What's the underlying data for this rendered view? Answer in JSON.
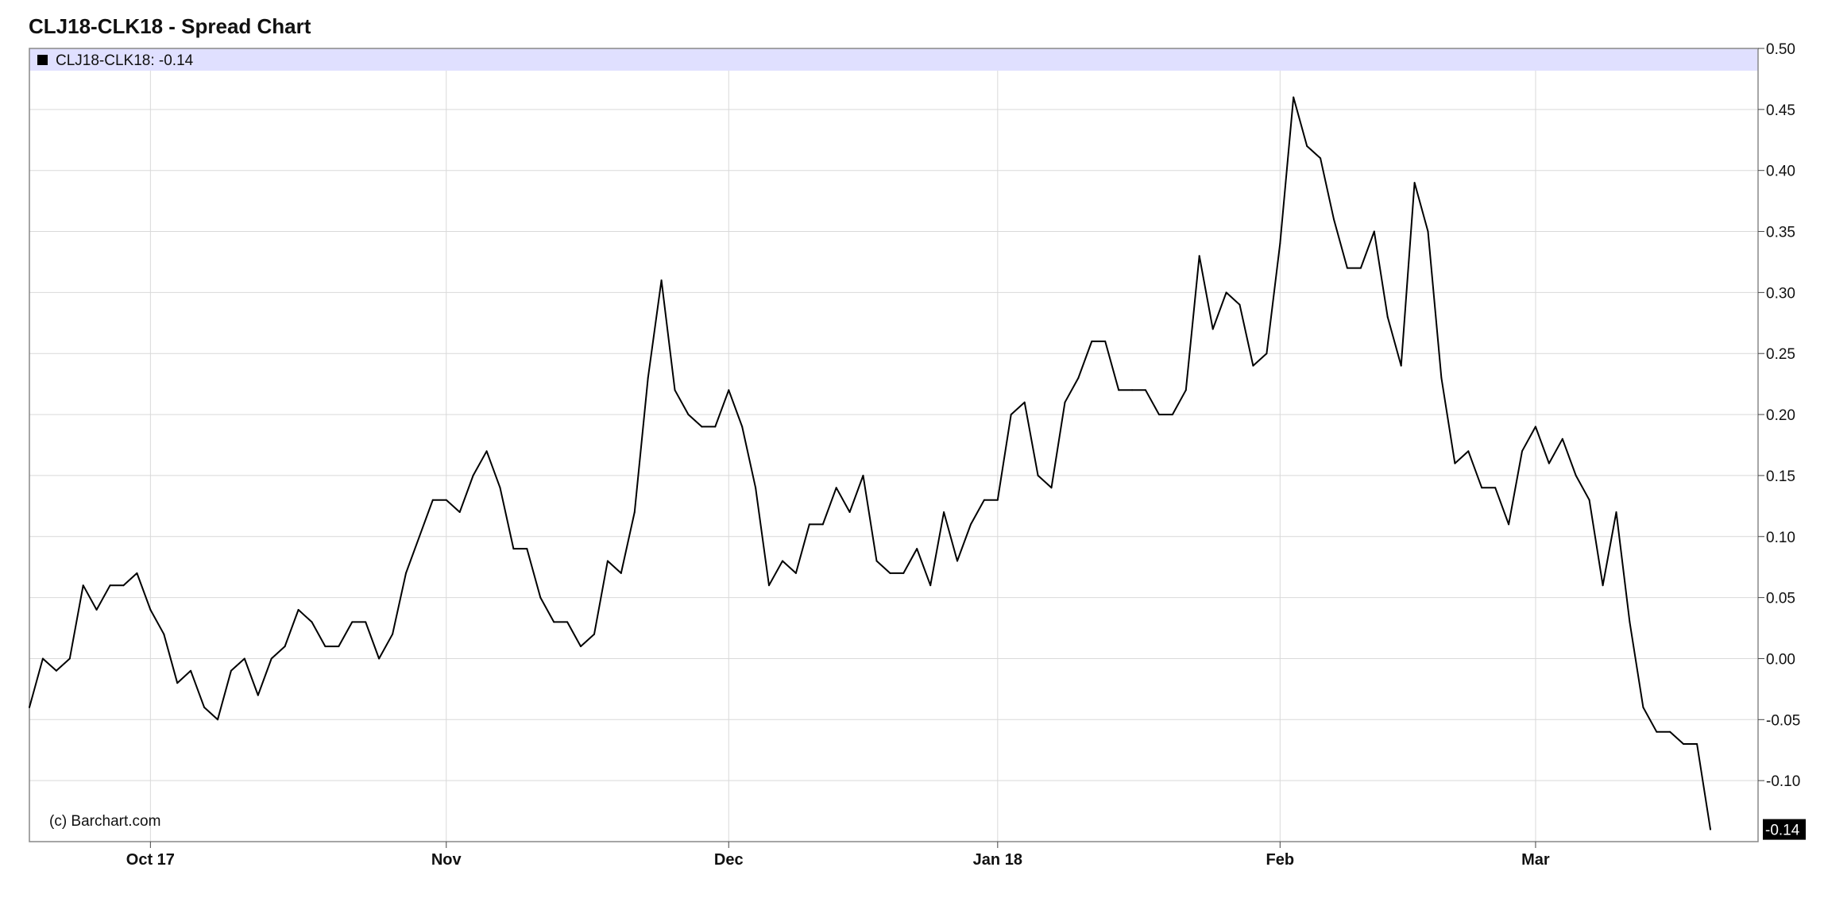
{
  "title": "CLJ18-CLK18 - Spread Chart",
  "legend": {
    "label": "CLJ18-CLK18: -0.14"
  },
  "credit": "(c) Barchart.com",
  "last_value_label": "-0.14",
  "colors": {
    "line": "#000000",
    "legend_band": "#e0e0ff",
    "grid": "#d9d9d9",
    "last_bg": "#000000",
    "last_fg": "#ffffff"
  },
  "chart_data": {
    "type": "line",
    "title": "CLJ18-CLK18 - Spread Chart",
    "ylim": [
      -0.15,
      0.5
    ],
    "y_ticks": [
      "0.50",
      "0.45",
      "0.40",
      "0.35",
      "0.30",
      "0.25",
      "0.20",
      "0.15",
      "0.10",
      "0.05",
      "0.00",
      "-0.05",
      "-0.10"
    ],
    "x_ticks": [
      {
        "label": "Oct 17",
        "index": 9
      },
      {
        "label": "Nov",
        "index": 31
      },
      {
        "label": "Dec",
        "index": 52
      },
      {
        "label": "Jan 18",
        "index": 72
      },
      {
        "label": "Feb",
        "index": 93
      },
      {
        "label": "Mar",
        "index": 112
      }
    ],
    "grid": true,
    "series": [
      {
        "name": "CLJ18-CLK18",
        "values": [
          -0.04,
          0.0,
          -0.01,
          0.0,
          0.06,
          0.04,
          0.06,
          0.06,
          0.07,
          0.04,
          0.02,
          -0.02,
          -0.01,
          -0.04,
          -0.05,
          -0.01,
          0.0,
          -0.03,
          0.0,
          0.01,
          0.04,
          0.03,
          0.01,
          0.01,
          0.03,
          0.03,
          0.0,
          0.02,
          0.07,
          0.1,
          0.13,
          0.13,
          0.12,
          0.15,
          0.17,
          0.14,
          0.09,
          0.09,
          0.05,
          0.03,
          0.03,
          0.01,
          0.02,
          0.08,
          0.07,
          0.12,
          0.23,
          0.31,
          0.22,
          0.2,
          0.19,
          0.19,
          0.22,
          0.19,
          0.14,
          0.06,
          0.08,
          0.07,
          0.11,
          0.11,
          0.14,
          0.12,
          0.15,
          0.08,
          0.07,
          0.07,
          0.09,
          0.06,
          0.12,
          0.08,
          0.11,
          0.13,
          0.13,
          0.2,
          0.21,
          0.15,
          0.14,
          0.21,
          0.23,
          0.26,
          0.26,
          0.22,
          0.22,
          0.22,
          0.2,
          0.2,
          0.22,
          0.33,
          0.27,
          0.3,
          0.29,
          0.24,
          0.25,
          0.34,
          0.46,
          0.42,
          0.41,
          0.36,
          0.32,
          0.32,
          0.35,
          0.28,
          0.24,
          0.39,
          0.35,
          0.23,
          0.16,
          0.17,
          0.14,
          0.14,
          0.11,
          0.17,
          0.19,
          0.16,
          0.18,
          0.15,
          0.13,
          0.06,
          0.12,
          0.03,
          -0.04,
          -0.06,
          -0.06,
          -0.07,
          -0.07,
          -0.14
        ]
      }
    ]
  }
}
